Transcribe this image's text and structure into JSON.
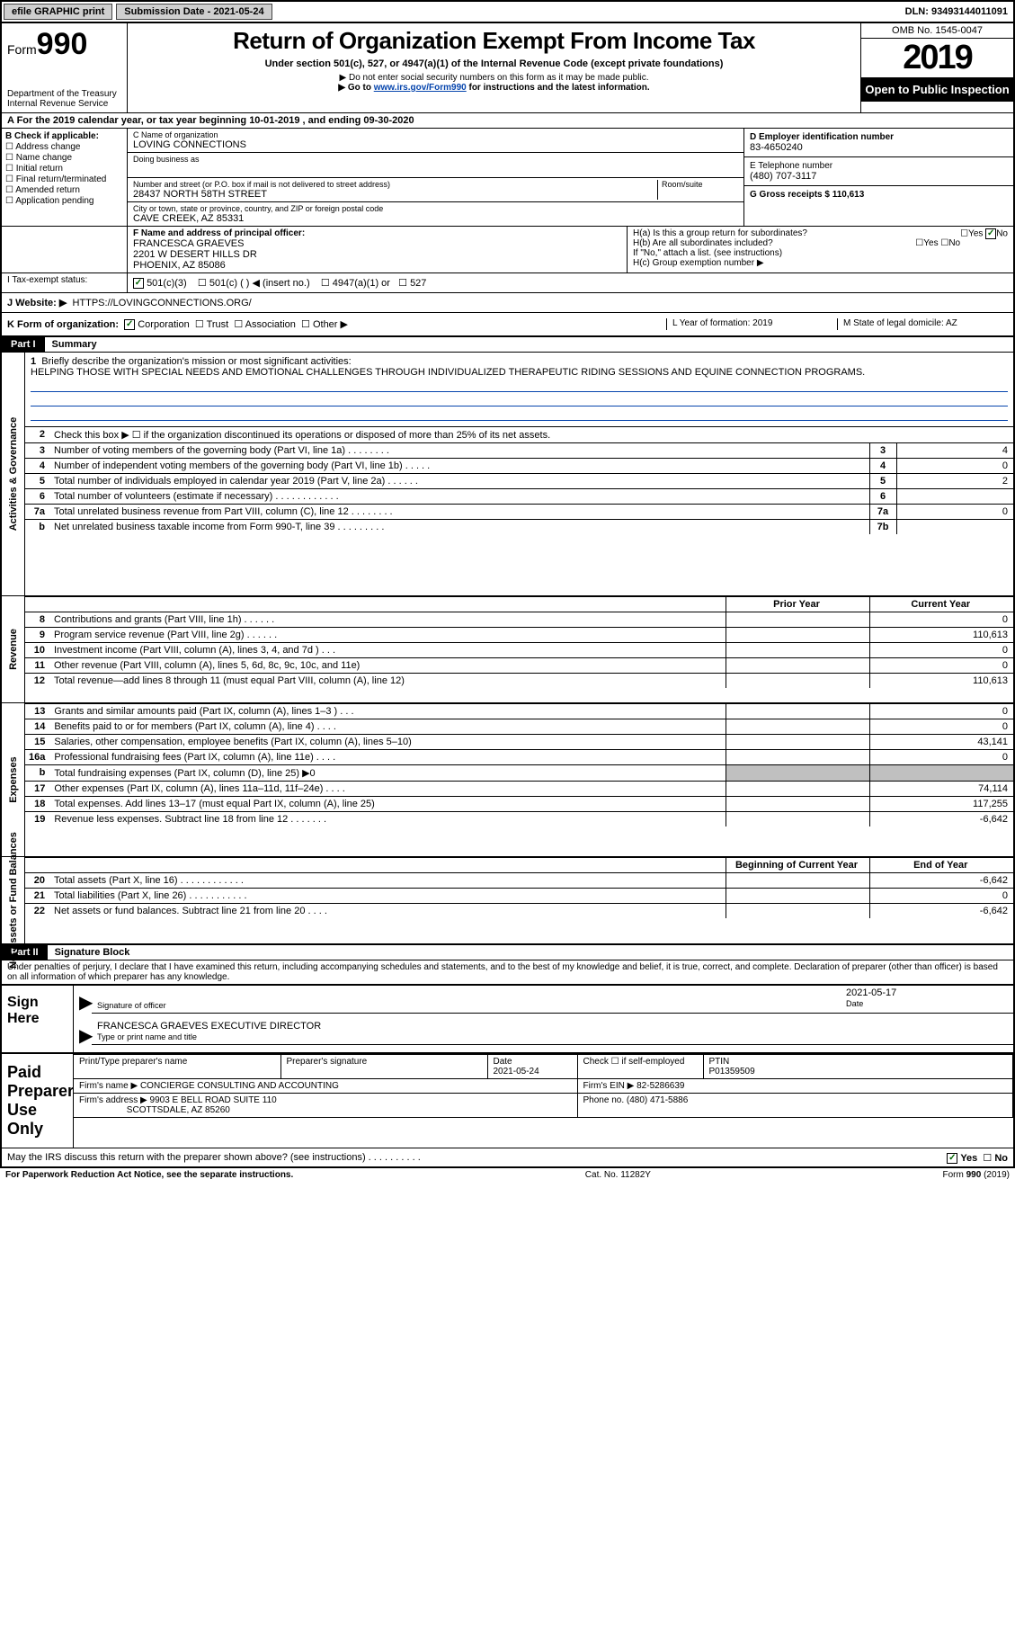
{
  "topbar": {
    "btn1": "efile GRAPHIC print",
    "submission_label": "Submission Date - 2021-05-24",
    "dln": "DLN: 93493144011091"
  },
  "header": {
    "form_label": "Form",
    "form_num": "990",
    "dept": "Department of the Treasury\nInternal Revenue Service",
    "title": "Return of Organization Exempt From Income Tax",
    "subtitle": "Under section 501(c), 527, or 4947(a)(1) of the Internal Revenue Code (except private foundations)",
    "note1": "▶ Do not enter social security numbers on this form as it may be made public.",
    "note2_pre": "▶ Go to ",
    "note2_link": "www.irs.gov/Form990",
    "note2_post": " for instructions and the latest information.",
    "omb": "OMB No. 1545-0047",
    "year": "2019",
    "open": "Open to Public Inspection"
  },
  "taxyear": "A For the 2019 calendar year, or tax year beginning 10-01-2019    , and ending 09-30-2020",
  "sectionB": {
    "label": "B Check if applicable:",
    "items": [
      "Address change",
      "Name change",
      "Initial return",
      "Final return/terminated",
      "Amended return",
      "Application pending"
    ]
  },
  "sectionC": {
    "name_label": "C Name of organization",
    "name": "LOVING CONNECTIONS",
    "dba_label": "Doing business as",
    "dba": "",
    "addr_label": "Number and street (or P.O. box if mail is not delivered to street address)",
    "room_label": "Room/suite",
    "addr": "28437 NORTH 58TH STREET",
    "city_label": "City or town, state or province, country, and ZIP or foreign postal code",
    "city": "CAVE CREEK, AZ  85331"
  },
  "sectionD": {
    "label": "D Employer identification number",
    "value": "83-4650240"
  },
  "sectionE": {
    "label": "E Telephone number",
    "value": "(480) 707-3117"
  },
  "sectionG": {
    "label": "G Gross receipts $ 110,613"
  },
  "sectionF": {
    "label": "F  Name and address of principal officer:",
    "name": "FRANCESCA GRAEVES",
    "addr1": "2201 W DESERT HILLS DR",
    "addr2": "PHOENIX, AZ  85086"
  },
  "sectionH": {
    "a": "H(a)  Is this a group return for subordinates?",
    "a_yes": "Yes",
    "a_no": "No",
    "b": "H(b)  Are all subordinates included?",
    "b_yes": "Yes",
    "b_no": "No",
    "note": "If \"No,\" attach a list. (see instructions)",
    "c": "H(c)  Group exemption number ▶"
  },
  "sectionI": {
    "label": "I  Tax-exempt status:",
    "opts": [
      "501(c)(3)",
      "501(c) (  ) ◀ (insert no.)",
      "4947(a)(1) or",
      "527"
    ]
  },
  "sectionJ": {
    "label": "J  Website: ▶",
    "value": "HTTPS://LOVINGCONNECTIONS.ORG/"
  },
  "sectionK": {
    "label": "K Form of organization:",
    "opts": [
      "Corporation",
      "Trust",
      "Association",
      "Other ▶"
    ]
  },
  "sectionL": {
    "label": "L Year of formation: 2019"
  },
  "sectionM": {
    "label": "M State of legal domicile: AZ"
  },
  "partI": {
    "tag": "Part I",
    "title": "Summary"
  },
  "mission": {
    "num": "1",
    "label": "Briefly describe the organization's mission or most significant activities:",
    "text": "HELPING THOSE WITH SPECIAL NEEDS AND EMOTIONAL CHALLENGES THROUGH INDIVIDUALIZED THERAPEUTIC RIDING SESSIONS AND EQUINE CONNECTION PROGRAMS."
  },
  "vert_labels": {
    "ag": "Activities & Governance",
    "rev": "Revenue",
    "exp": "Expenses",
    "na": "Net Assets or Fund Balances"
  },
  "lines_ag": [
    {
      "n": "2",
      "t": "Check this box ▶ ☐  if the organization discontinued its operations or disposed of more than 25% of its net assets."
    },
    {
      "n": "3",
      "t": "Number of voting members of the governing body (Part VI, line 1a)  .  .  .  .  .  .  .  .",
      "box": "3",
      "val": "4"
    },
    {
      "n": "4",
      "t": "Number of independent voting members of the governing body (Part VI, line 1b)  .  .  .  .  .",
      "box": "4",
      "val": "0"
    },
    {
      "n": "5",
      "t": "Total number of individuals employed in calendar year 2019 (Part V, line 2a)  .  .  .  .  .  .",
      "box": "5",
      "val": "2"
    },
    {
      "n": "6",
      "t": "Total number of volunteers (estimate if necessary)  .  .  .  .  .  .  .  .  .  .  .  .",
      "box": "6",
      "val": ""
    },
    {
      "n": "7a",
      "t": "Total unrelated business revenue from Part VIII, column (C), line 12  .  .  .  .  .  .  .  .",
      "box": "7a",
      "val": "0"
    },
    {
      "n": "b",
      "t": "Net unrelated business taxable income from Form 990-T, line 39  .  .  .  .  .  .  .  .  .",
      "box": "7b",
      "val": ""
    }
  ],
  "col_headers": {
    "prior": "Prior Year",
    "curr": "Current Year"
  },
  "lines_rev": [
    {
      "n": "8",
      "t": "Contributions and grants (Part VIII, line 1h)  .  .  .  .  .  .",
      "p": "",
      "c": "0"
    },
    {
      "n": "9",
      "t": "Program service revenue (Part VIII, line 2g)  .  .  .  .  .  .",
      "p": "",
      "c": "110,613"
    },
    {
      "n": "10",
      "t": "Investment income (Part VIII, column (A), lines 3, 4, and 7d )  .  .  .",
      "p": "",
      "c": "0"
    },
    {
      "n": "11",
      "t": "Other revenue (Part VIII, column (A), lines 5, 6d, 8c, 9c, 10c, and 11e)",
      "p": "",
      "c": "0"
    },
    {
      "n": "12",
      "t": "Total revenue—add lines 8 through 11 (must equal Part VIII, column (A), line 12)",
      "p": "",
      "c": "110,613"
    }
  ],
  "lines_exp": [
    {
      "n": "13",
      "t": "Grants and similar amounts paid (Part IX, column (A), lines 1–3 )  .  .  .",
      "p": "",
      "c": "0"
    },
    {
      "n": "14",
      "t": "Benefits paid to or for members (Part IX, column (A), line 4)  .  .  .  .",
      "p": "",
      "c": "0"
    },
    {
      "n": "15",
      "t": "Salaries, other compensation, employee benefits (Part IX, column (A), lines 5–10)",
      "p": "",
      "c": "43,141"
    },
    {
      "n": "16a",
      "t": "Professional fundraising fees (Part IX, column (A), line 11e)  .  .  .  .",
      "p": "",
      "c": "0"
    },
    {
      "n": "b",
      "t": "Total fundraising expenses (Part IX, column (D), line 25) ▶0",
      "shaded": true
    },
    {
      "n": "17",
      "t": "Other expenses (Part IX, column (A), lines 11a–11d, 11f–24e)  .  .  .  .",
      "p": "",
      "c": "74,114"
    },
    {
      "n": "18",
      "t": "Total expenses. Add lines 13–17 (must equal Part IX, column (A), line 25)",
      "p": "",
      "c": "117,255"
    },
    {
      "n": "19",
      "t": "Revenue less expenses. Subtract line 18 from line 12  .  .  .  .  .  .  .",
      "p": "",
      "c": "-6,642"
    }
  ],
  "col_headers2": {
    "beg": "Beginning of Current Year",
    "end": "End of Year"
  },
  "lines_na": [
    {
      "n": "20",
      "t": "Total assets (Part X, line 16)  .  .  .  .  .  .  .  .  .  .  .  .",
      "p": "",
      "c": "-6,642"
    },
    {
      "n": "21",
      "t": "Total liabilities (Part X, line 26)  .  .  .  .  .  .  .  .  .  .  .",
      "p": "",
      "c": "0"
    },
    {
      "n": "22",
      "t": "Net assets or fund balances. Subtract line 21 from line 20  .  .  .  .",
      "p": "",
      "c": "-6,642"
    }
  ],
  "partII": {
    "tag": "Part II",
    "title": "Signature Block"
  },
  "penalty": "Under penalties of perjury, I declare that I have examined this return, including accompanying schedules and statements, and to the best of my knowledge and belief, it is true, correct, and complete. Declaration of preparer (other than officer) is based on all information of which preparer has any knowledge.",
  "sign": {
    "here": "Sign Here",
    "sig_officer": "Signature of officer",
    "date_label": "Date",
    "date": "2021-05-17",
    "name": "FRANCESCA GRAEVES  EXECUTIVE DIRECTOR",
    "name_label": "Type or print name and title"
  },
  "paid": {
    "label": "Paid Preparer Use Only",
    "r1c1": "Print/Type preparer's name",
    "r1c2": "Preparer's signature",
    "r1c3_label": "Date",
    "r1c3": "2021-05-24",
    "r1c4": "Check ☐  if self-employed",
    "r1c5_label": "PTIN",
    "r1c5": "P01359509",
    "r2_label": "Firm's name    ▶",
    "r2": "CONCIERGE CONSULTING AND ACCOUNTING",
    "r2b_label": "Firm's EIN ▶",
    "r2b": "82-5286639",
    "r3_label": "Firm's address ▶",
    "r3a": "9903 E BELL ROAD SUITE 110",
    "r3b": "SCOTTSDALE, AZ  85260",
    "r3c_label": "Phone no.",
    "r3c": "(480) 471-5886"
  },
  "discuss": {
    "text": "May the IRS discuss this return with the preparer shown above? (see instructions)  .  .  .  .  .  .  .  .  .  .",
    "yes": "Yes",
    "no": "No"
  },
  "footer": {
    "left": "For Paperwork Reduction Act Notice, see the separate instructions.",
    "mid": "Cat. No. 11282Y",
    "right": "Form 990 (2019)"
  }
}
